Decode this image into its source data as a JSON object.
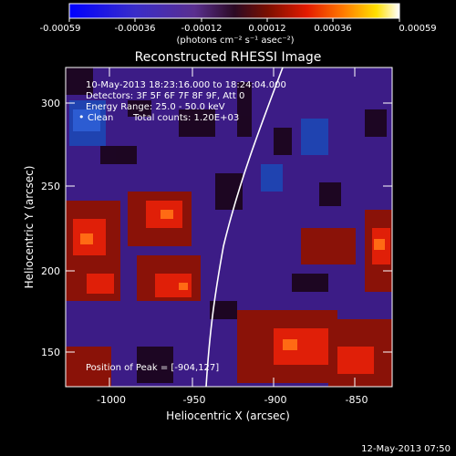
{
  "colorbar": {
    "ticks": [
      "-0.00059",
      "-0.00036",
      "-0.00012",
      "0.00012",
      "0.00036",
      "0.00059"
    ],
    "unit_label": "(photons cm⁻² s⁻¹ asec⁻²)",
    "colors": [
      "#0000ff",
      "#3a2dc8",
      "#5a2f8f",
      "#2b0a24",
      "#7a0f00",
      "#e41b00",
      "#ff7a00",
      "#ffe000",
      "#ffffff"
    ]
  },
  "title": "Reconstructed RHESSI Image",
  "info": {
    "line1": "10-May-2013 18:23:16.000 to 18:24:04.000",
    "line2": "Detectors: 3F 5F 6F 7F 8F 9F, Att 0",
    "line3": "Energy Range: 25.0 - 50.0 keV",
    "line4_algo": "Clean",
    "line4_counts": "Total counts: 1.20E+03"
  },
  "peak": "Position of Peak = [-904,127]",
  "axes": {
    "xlabel": "Heliocentric X (arcsec)",
    "ylabel": "Heliocentric Y (arcsec)",
    "xticks": [
      "-1000",
      "-950",
      "-900",
      "-850"
    ],
    "yticks": [
      "150",
      "200",
      "250",
      "300"
    ]
  },
  "footer_timestamp": "12-May-2013 07:50"
}
